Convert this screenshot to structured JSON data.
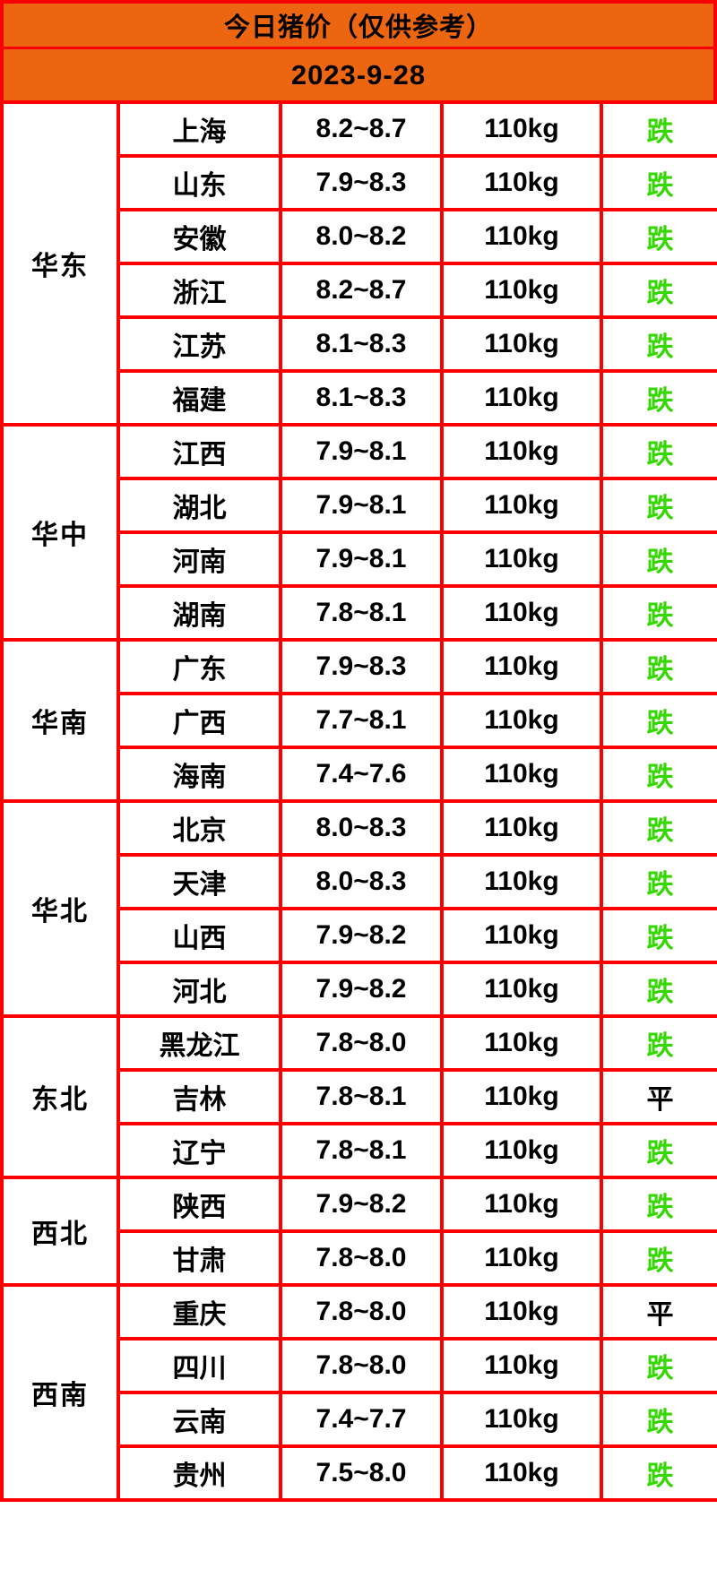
{
  "colors": {
    "header_bg": "#EC6511",
    "border": "#FB0000",
    "fall_green": "#35D702",
    "flat_black": "#000000",
    "cell_bg": "#FFFFFF"
  },
  "status_colors": {
    "跌": "#35D702",
    "平": "#000000"
  },
  "chart_data": {
    "type": "table",
    "title": "今日猪价（仅供参考）",
    "date": "2023-9-28",
    "groups": [
      {
        "region": "华东",
        "rows": [
          {
            "province": "上海",
            "price": "8.2~8.7",
            "weight": "110kg",
            "status": "跌"
          },
          {
            "province": "山东",
            "price": "7.9~8.3",
            "weight": "110kg",
            "status": "跌"
          },
          {
            "province": "安徽",
            "price": "8.0~8.2",
            "weight": "110kg",
            "status": "跌"
          },
          {
            "province": "浙江",
            "price": "8.2~8.7",
            "weight": "110kg",
            "status": "跌"
          },
          {
            "province": "江苏",
            "price": "8.1~8.3",
            "weight": "110kg",
            "status": "跌"
          },
          {
            "province": "福建",
            "price": "8.1~8.3",
            "weight": "110kg",
            "status": "跌"
          }
        ]
      },
      {
        "region": "华中",
        "rows": [
          {
            "province": "江西",
            "price": "7.9~8.1",
            "weight": "110kg",
            "status": "跌"
          },
          {
            "province": "湖北",
            "price": "7.9~8.1",
            "weight": "110kg",
            "status": "跌"
          },
          {
            "province": "河南",
            "price": "7.9~8.1",
            "weight": "110kg",
            "status": "跌"
          },
          {
            "province": "湖南",
            "price": "7.8~8.1",
            "weight": "110kg",
            "status": "跌"
          }
        ]
      },
      {
        "region": "华南",
        "rows": [
          {
            "province": "广东",
            "price": "7.9~8.3",
            "weight": "110kg",
            "status": "跌"
          },
          {
            "province": "广西",
            "price": "7.7~8.1",
            "weight": "110kg",
            "status": "跌"
          },
          {
            "province": "海南",
            "price": "7.4~7.6",
            "weight": "110kg",
            "status": "跌"
          }
        ]
      },
      {
        "region": "华北",
        "rows": [
          {
            "province": "北京",
            "price": "8.0~8.3",
            "weight": "110kg",
            "status": "跌"
          },
          {
            "province": "天津",
            "price": "8.0~8.3",
            "weight": "110kg",
            "status": "跌"
          },
          {
            "province": "山西",
            "price": "7.9~8.2",
            "weight": "110kg",
            "status": "跌"
          },
          {
            "province": "河北",
            "price": "7.9~8.2",
            "weight": "110kg",
            "status": "跌"
          }
        ]
      },
      {
        "region": "东北",
        "rows": [
          {
            "province": "黑龙江",
            "price": "7.8~8.0",
            "weight": "110kg",
            "status": "跌"
          },
          {
            "province": "吉林",
            "price": "7.8~8.1",
            "weight": "110kg",
            "status": "平"
          },
          {
            "province": "辽宁",
            "price": "7.8~8.1",
            "weight": "110kg",
            "status": "跌"
          }
        ]
      },
      {
        "region": "西北",
        "rows": [
          {
            "province": "陕西",
            "price": "7.9~8.2",
            "weight": "110kg",
            "status": "跌"
          },
          {
            "province": "甘肃",
            "price": "7.8~8.0",
            "weight": "110kg",
            "status": "跌"
          }
        ]
      },
      {
        "region": "西南",
        "rows": [
          {
            "province": "重庆",
            "price": "7.8~8.0",
            "weight": "110kg",
            "status": "平"
          },
          {
            "province": "四川",
            "price": "7.8~8.0",
            "weight": "110kg",
            "status": "跌"
          },
          {
            "province": "云南",
            "price": "7.4~7.7",
            "weight": "110kg",
            "status": "跌"
          },
          {
            "province": "贵州",
            "price": "7.5~8.0",
            "weight": "110kg",
            "status": "跌"
          }
        ]
      }
    ]
  }
}
